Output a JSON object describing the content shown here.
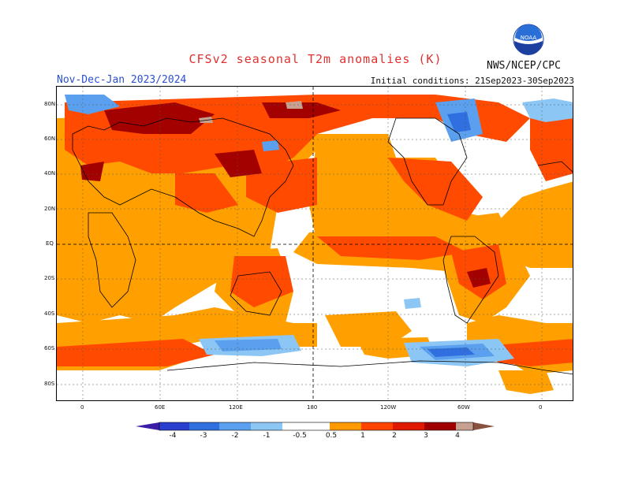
{
  "header": {
    "title": "CFSv2 seasonal T2m anomalies (K)",
    "season": "Nov-Dec-Jan 2023/2024",
    "initial_conditions": "Initial conditions: 21Sep2023-30Sep2023",
    "agency": "NWS/NCEP/CPC",
    "logo_text": "NOAA"
  },
  "map": {
    "lat_labels": [
      "80N",
      "60N",
      "40N",
      "20N",
      "EQ",
      "20S",
      "40S",
      "60S",
      "80S"
    ],
    "lon_labels": [
      "0",
      "60E",
      "120E",
      "180",
      "120W",
      "60W",
      "0"
    ]
  },
  "colorbar": {
    "labels": [
      "-4",
      "-3",
      "-2",
      "-1",
      "-0.5",
      "0.5",
      "1",
      "2",
      "3",
      "4"
    ],
    "colors": [
      "#3a1ea8",
      "#2a3fd0",
      "#2f6fe0",
      "#5aa0ee",
      "#8cc6f5",
      "#ffffff",
      "#ff9900",
      "#ff4400",
      "#e01a00",
      "#a00000",
      "#c8a090",
      "#8a5040"
    ]
  },
  "colors": {
    "warm_light": "#ffa000",
    "warm_mid": "#ff4a00",
    "warm_strong": "#dd1800",
    "warm_extreme": "#a30000",
    "cold_light": "#8cc6f5",
    "cold_mid": "#5aa0ee",
    "cold_strong": "#2f6fe0"
  }
}
